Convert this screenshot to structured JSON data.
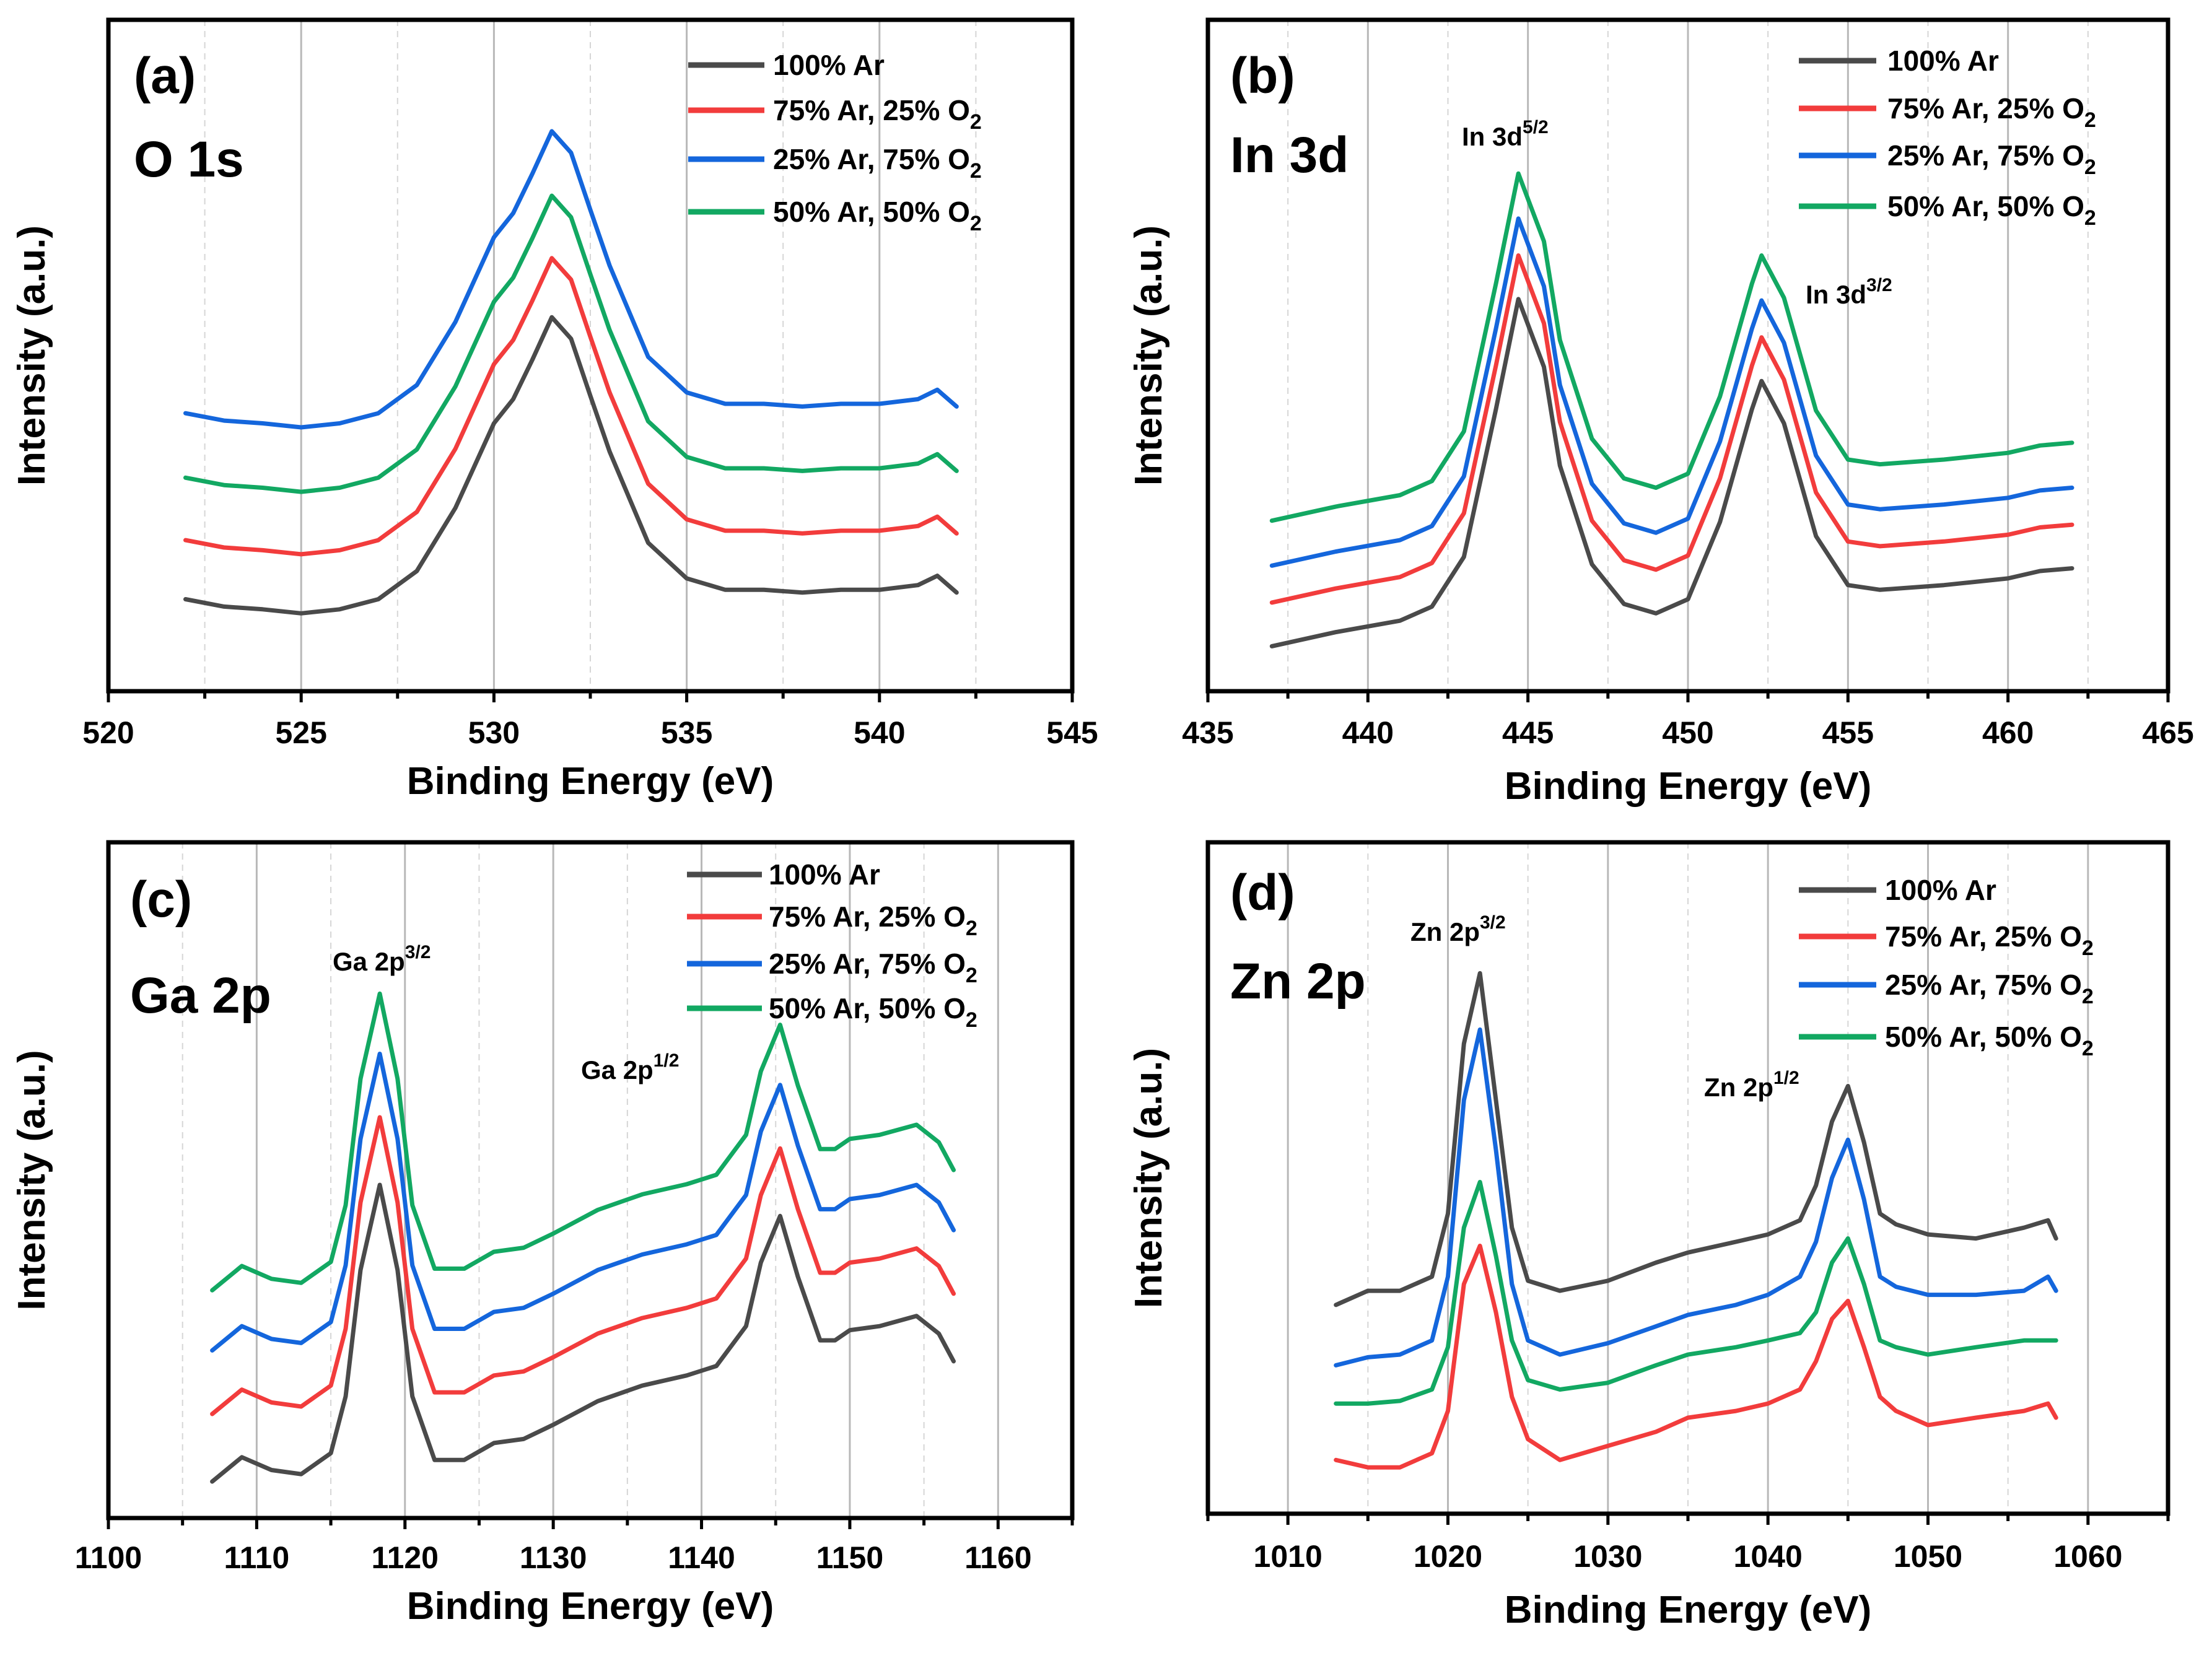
{
  "colors": {
    "100% Ar": "#4a4a4a",
    "75% Ar, 25% O2": "#f23c3c",
    "25% Ar, 75% O2": "#1466dc",
    "50% Ar, 50% O2": "#12a862"
  },
  "chart_data": [
    {
      "type": "line",
      "panel_label": "(a)",
      "title": "O 1s",
      "xlabel": "Binding Energy (eV)",
      "ylabel": "Intensity (a.u.)",
      "xlim": [
        520,
        545
      ],
      "ylim": [
        0,
        100
      ],
      "xticks": [
        "520",
        "525",
        "530",
        "535",
        "540",
        "545"
      ],
      "xtick_values": [
        520,
        525,
        530,
        535,
        540,
        545
      ],
      "minor_step": 2.5,
      "grid": true,
      "legend_placement": "top-right",
      "annotations": [],
      "x": [
        522,
        523,
        524,
        525,
        526,
        527,
        528,
        529,
        530,
        530.5,
        531,
        531.5,
        532,
        532.5,
        533,
        534,
        535,
        536,
        537,
        538,
        539,
        540,
        541,
        541.5,
        542
      ],
      "series": [
        {
          "name": "100% Ar",
          "label": "100% Ar",
          "sub": "",
          "values": [
            13.7,
            12.6,
            12.2,
            11.6,
            12.2,
            13.7,
            17.9,
            27.3,
            39.9,
            43.5,
            49.4,
            55.7,
            52.5,
            44.0,
            35.7,
            22.1,
            16.8,
            15.1,
            15.1,
            14.7,
            15.1,
            15.1,
            15.8,
            17.2,
            14.7
          ]
        },
        {
          "name": "75% Ar, 25% O2",
          "label": "75% Ar, 25% O",
          "sub": "2",
          "values": [
            22.5,
            21.4,
            21.0,
            20.4,
            21.0,
            22.5,
            26.7,
            36.1,
            48.7,
            52.3,
            58.2,
            64.5,
            61.3,
            52.8,
            44.5,
            30.9,
            25.6,
            23.9,
            23.9,
            23.5,
            23.9,
            23.9,
            24.6,
            26.0,
            23.5
          ]
        },
        {
          "name": "25% Ar, 75% O2",
          "label": "25% Ar, 75% O",
          "sub": "2",
          "values": [
            41.4,
            40.3,
            39.9,
            39.3,
            39.9,
            41.4,
            45.6,
            55.0,
            67.6,
            71.2,
            77.1,
            83.4,
            80.2,
            71.7,
            63.4,
            49.8,
            44.5,
            42.8,
            42.8,
            42.4,
            42.8,
            42.8,
            43.5,
            44.9,
            42.4
          ]
        },
        {
          "name": "50% Ar, 50% O2",
          "label": "50% Ar, 50% O",
          "sub": "2",
          "values": [
            31.8,
            30.7,
            30.3,
            29.7,
            30.3,
            31.8,
            36.0,
            45.4,
            58.0,
            61.6,
            67.5,
            73.8,
            70.6,
            62.1,
            53.8,
            40.2,
            34.9,
            33.2,
            33.2,
            32.8,
            33.2,
            33.2,
            33.9,
            35.3,
            32.8
          ]
        }
      ]
    },
    {
      "type": "line",
      "panel_label": "(b)",
      "title": "In 3d",
      "xlabel": "Binding Energy (eV)",
      "ylabel": "Intensity (a.u.)",
      "xlim": [
        435,
        465
      ],
      "ylim": [
        0,
        100
      ],
      "xticks": [
        "435",
        "440",
        "445",
        "450",
        "455",
        "460",
        "465"
      ],
      "xtick_values": [
        435,
        440,
        445,
        450,
        455,
        460,
        465
      ],
      "minor_step": 2.5,
      "grid": true,
      "legend_placement": "top-right",
      "annotations": [
        {
          "text": "In 3d",
          "sup": "5/2",
          "x": 444.7
        },
        {
          "text": "In 3d",
          "sup": "3/2",
          "x": 452.3
        }
      ],
      "x": [
        437,
        439,
        441,
        442,
        443,
        444,
        444.7,
        445.5,
        446,
        447,
        448,
        449,
        450,
        451,
        452,
        452.3,
        453,
        454,
        455,
        456,
        458,
        460,
        461,
        462
      ],
      "series": [
        {
          "name": "100% Ar",
          "label": "100% Ar",
          "sub": "",
          "values": [
            6.7,
            8.8,
            10.5,
            12.6,
            20.0,
            42.0,
            58.4,
            48.3,
            33.6,
            18.9,
            13.0,
            11.6,
            13.7,
            25.2,
            42.0,
            46.2,
            39.9,
            23.1,
            15.8,
            15.1,
            15.8,
            16.8,
            17.9,
            18.3
          ]
        },
        {
          "name": "75% Ar, 25% O2",
          "label": "75% Ar, 25% O",
          "sub": "2",
          "values": [
            13.2,
            15.3,
            17.0,
            19.1,
            26.5,
            48.5,
            64.9,
            54.8,
            40.1,
            25.4,
            19.5,
            18.1,
            20.2,
            31.7,
            48.5,
            52.7,
            46.4,
            29.6,
            22.3,
            21.6,
            22.3,
            23.3,
            24.4,
            24.8
          ]
        },
        {
          "name": "25% Ar, 75% O2",
          "label": "25% Ar, 75% O",
          "sub": "2",
          "values": [
            18.7,
            20.8,
            22.5,
            24.6,
            32.0,
            54.0,
            70.4,
            60.3,
            45.6,
            30.9,
            25.0,
            23.6,
            25.7,
            37.2,
            54.0,
            58.2,
            51.9,
            35.1,
            27.8,
            27.1,
            27.8,
            28.8,
            29.9,
            30.3
          ]
        },
        {
          "name": "50% Ar, 50% O2",
          "label": "50% Ar, 50% O",
          "sub": "2",
          "values": [
            25.4,
            27.5,
            29.2,
            31.3,
            38.7,
            60.7,
            77.1,
            67.0,
            52.3,
            37.6,
            31.7,
            30.3,
            32.4,
            43.9,
            60.7,
            64.9,
            58.6,
            41.8,
            34.5,
            33.8,
            34.5,
            35.5,
            36.6,
            37.0
          ]
        }
      ]
    },
    {
      "type": "line",
      "panel_label": "(c)",
      "title": "Ga 2p",
      "xlabel": "Binding Energy (eV)",
      "ylabel": "Intensity (a.u.)",
      "xlim": [
        1100,
        1165
      ],
      "ylim": [
        0,
        100
      ],
      "xticks": [
        "1100",
        "1110",
        "1120",
        "1130",
        "1140",
        "1150",
        "1160"
      ],
      "xtick_values": [
        1100,
        1110,
        1120,
        1130,
        1140,
        1150,
        1160
      ],
      "minor_step": 5,
      "grid": true,
      "legend_placement": "top-right",
      "annotations": [
        {
          "text": "Ga 2p",
          "sup": "3/2",
          "x": 1118.3
        },
        {
          "text": "Ga 2p",
          "sup": "1/2",
          "x": 1145.3
        }
      ],
      "x": [
        1107,
        1109,
        1111,
        1113,
        1115,
        1116,
        1117,
        1118.3,
        1119.5,
        1120.5,
        1122,
        1124,
        1126,
        1128,
        1130,
        1133,
        1136,
        1139,
        1141,
        1143,
        1144,
        1145.3,
        1146.5,
        1148,
        1149,
        1150,
        1152,
        1154.5,
        1156,
        1157
      ],
      "series": [
        {
          "name": "100% Ar",
          "label": "100% Ar",
          "sub": "",
          "values": [
            5.4,
            9.0,
            7.1,
            6.5,
            9.6,
            18.0,
            36.7,
            49.3,
            36.7,
            18.0,
            8.6,
            8.6,
            11.1,
            11.7,
            13.8,
            17.3,
            19.6,
            21.1,
            22.5,
            28.4,
            37.8,
            44.7,
            35.7,
            26.3,
            26.3,
            27.8,
            28.4,
            29.9,
            27.3,
            23.2
          ]
        },
        {
          "name": "75% Ar, 25% O2",
          "label": "75% Ar, 25% O",
          "sub": "2",
          "values": [
            15.4,
            19.0,
            17.1,
            16.5,
            19.6,
            28.0,
            46.7,
            59.3,
            46.7,
            28.0,
            18.6,
            18.6,
            21.1,
            21.7,
            23.8,
            27.3,
            29.6,
            31.1,
            32.5,
            38.4,
            47.8,
            54.7,
            45.7,
            36.3,
            36.3,
            37.8,
            38.4,
            39.9,
            37.3,
            33.2
          ]
        },
        {
          "name": "25% Ar, 75% O2",
          "label": "25% Ar, 75% O",
          "sub": "2",
          "values": [
            24.8,
            28.4,
            26.5,
            25.9,
            29.0,
            37.4,
            56.1,
            68.7,
            56.1,
            37.4,
            28.0,
            28.0,
            30.5,
            31.1,
            33.2,
            36.7,
            39.0,
            40.5,
            41.9,
            47.8,
            57.2,
            64.1,
            55.1,
            45.7,
            45.7,
            47.2,
            47.8,
            49.3,
            46.7,
            42.6
          ]
        },
        {
          "name": "50% Ar, 50% O2",
          "label": "50% Ar, 50% O",
          "sub": "2",
          "values": [
            33.7,
            37.3,
            35.4,
            34.8,
            37.9,
            46.3,
            65.0,
            77.6,
            65.0,
            46.3,
            36.9,
            36.9,
            39.4,
            40.0,
            42.1,
            45.6,
            47.9,
            49.4,
            50.8,
            56.7,
            66.1,
            73.0,
            64.0,
            54.6,
            54.6,
            56.1,
            56.7,
            58.2,
            55.6,
            51.5
          ]
        }
      ]
    },
    {
      "type": "line",
      "panel_label": "(d)",
      "title": "Zn 2p",
      "xlabel": "Binding Energy (eV)",
      "ylabel": "Intensity (a.u.)",
      "xlim": [
        1005,
        1065
      ],
      "ylim": [
        0,
        100
      ],
      "xticks": [
        "1010",
        "1020",
        "1030",
        "1040",
        "1050",
        "1060"
      ],
      "xtick_values": [
        1010,
        1020,
        1030,
        1040,
        1050,
        1060
      ],
      "minor_step": 5,
      "grid": true,
      "legend_placement": "top-right",
      "annotations": [
        {
          "text": "Zn 2p",
          "sup": "3/2",
          "x": 1022
        },
        {
          "text": "Zn 2p",
          "sup": "1/2",
          "x": 1045
        }
      ],
      "x": [
        1013,
        1015,
        1017,
        1019,
        1020,
        1021,
        1022,
        1023,
        1024,
        1025,
        1027,
        1030,
        1033,
        1035,
        1038,
        1040,
        1042,
        1043,
        1044,
        1045,
        1046,
        1047,
        1048,
        1050,
        1053,
        1056,
        1057.5,
        1058
      ],
      "series": [
        {
          "name": "100% Ar",
          "label": "100% Ar",
          "sub": "",
          "values": [
            31.1,
            33.2,
            33.2,
            35.3,
            44.7,
            70.0,
            80.5,
            61.6,
            42.6,
            34.7,
            33.2,
            34.7,
            37.4,
            38.9,
            40.5,
            41.6,
            43.7,
            48.9,
            58.4,
            63.7,
            55.3,
            44.7,
            43.1,
            41.6,
            41.0,
            42.6,
            43.7,
            41.0
          ]
        },
        {
          "name": "75% Ar, 25% O2",
          "label": "75% Ar, 25% O",
          "sub": "2",
          "values": [
            8.0,
            6.9,
            6.9,
            9.0,
            15.3,
            34.2,
            39.9,
            30.0,
            17.4,
            11.1,
            8.0,
            10.1,
            12.2,
            14.3,
            15.3,
            16.4,
            18.5,
            22.7,
            29.0,
            31.7,
            24.8,
            17.4,
            15.3,
            13.2,
            14.3,
            15.3,
            16.4,
            14.3
          ]
        },
        {
          "name": "25% Ar, 75% O2",
          "label": "25% Ar, 75% O",
          "sub": "2",
          "values": [
            22.1,
            23.3,
            23.7,
            25.8,
            35.3,
            61.6,
            72.1,
            54.2,
            34.2,
            25.8,
            23.7,
            25.4,
            27.9,
            29.6,
            31.1,
            32.6,
            35.3,
            40.5,
            50.0,
            55.7,
            46.8,
            35.3,
            33.8,
            32.6,
            32.6,
            33.2,
            35.3,
            33.2
          ]
        },
        {
          "name": "50% Ar, 50% O2",
          "label": "50% Ar, 50% O",
          "sub": "2",
          "values": [
            16.4,
            16.4,
            16.8,
            18.5,
            24.8,
            42.6,
            49.4,
            38.4,
            25.8,
            19.9,
            18.5,
            19.5,
            22.1,
            23.7,
            24.8,
            25.8,
            26.9,
            30.0,
            37.4,
            41.0,
            34.2,
            25.8,
            24.8,
            23.7,
            24.8,
            25.8,
            25.8,
            25.8
          ]
        }
      ]
    }
  ]
}
